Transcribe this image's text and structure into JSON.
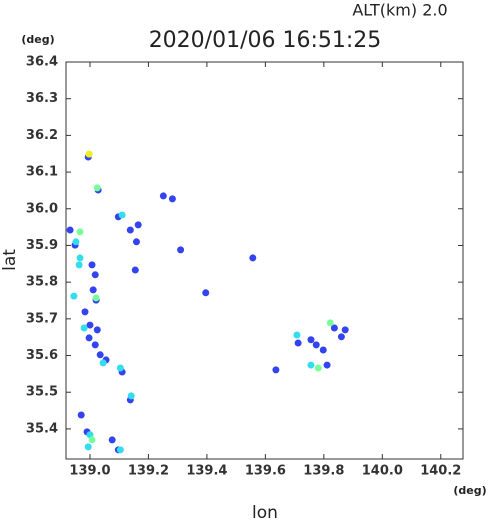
{
  "chart_data": {
    "type": "scatter",
    "title": "2020/01/06 16:51:25",
    "subtitle": "ALT(km) 2.0",
    "x_label": "lon",
    "y_label": "lat",
    "x_unit": "(deg)",
    "y_unit": "(deg)",
    "xlim": [
      138.918,
      140.276
    ],
    "ylim": [
      35.318,
      36.4
    ],
    "xticks": [
      {
        "value": 139,
        "label": "139.0"
      },
      139.2,
      139.4,
      139.6,
      139.8,
      {
        "value": 140,
        "label": "140.0"
      },
      140.2
    ],
    "yticks": [
      35.4,
      35.5,
      35.6,
      35.7,
      35.8,
      35.9,
      {
        "value": 36,
        "label": "36.0"
      },
      36.1,
      36.2,
      36.3,
      36.4
    ],
    "x": [
      138.994,
      139.028,
      139.097,
      139.138,
      139.165,
      139.251,
      139.282,
      138.932,
      138.949,
      139.007,
      139.018,
      139.011,
      139.021,
      138.983,
      139.0,
      139.025,
      138.997,
      139.018,
      139.035,
      139.055,
      139.11,
      138.97,
      138.99,
      139.076,
      139.097,
      139.138,
      139.557,
      139.712,
      139.756,
      139.774,
      139.798,
      139.811,
      139.836,
      139.873,
      139.86,
      139.396,
      139.31,
      139.159,
      139.155,
      139.636,
      138.952,
      138.966,
      138.945,
      138.98,
      139.045,
      139.104,
      139.141,
      139.0,
      139.756,
      139.708,
      138.994,
      139.104,
      139.11,
      138.963,
      139.025,
      139.021,
      139.781,
      139.822,
      139.007,
      138.966,
      138.997
    ],
    "y": [
      36.141,
      36.051,
      35.978,
      35.942,
      35.956,
      36.035,
      36.027,
      35.942,
      35.901,
      35.847,
      35.82,
      35.779,
      35.751,
      35.719,
      35.683,
      35.67,
      35.648,
      35.629,
      35.602,
      35.588,
      35.555,
      35.438,
      35.392,
      35.37,
      35.343,
      35.479,
      35.866,
      35.634,
      35.643,
      35.629,
      35.615,
      35.574,
      35.675,
      35.67,
      35.651,
      35.771,
      35.888,
      35.91,
      35.833,
      35.561,
      35.91,
      35.866,
      35.762,
      35.675,
      35.58,
      35.566,
      35.49,
      35.384,
      35.574,
      35.656,
      35.351,
      35.343,
      35.983,
      35.847,
      36.057,
      35.757,
      35.566,
      35.689,
      35.37,
      35.937,
      36.149
    ],
    "colors": [
      "#3344ee",
      "#3344ee",
      "#3344ee",
      "#3344ee",
      "#3344ee",
      "#3344ee",
      "#3344ee",
      "#3344ee",
      "#3344ee",
      "#3344ee",
      "#3344ee",
      "#3344ee",
      "#3344ee",
      "#3344ee",
      "#3344ee",
      "#3344ee",
      "#3344ee",
      "#3344ee",
      "#3344ee",
      "#3344ee",
      "#3344ee",
      "#3344ee",
      "#3344ee",
      "#3344ee",
      "#3344ee",
      "#3344ee",
      "#3344ee",
      "#3344ee",
      "#3344ee",
      "#3344ee",
      "#3344ee",
      "#3344ee",
      "#3344ee",
      "#3344ee",
      "#3344ee",
      "#3344ee",
      "#3344ee",
      "#3344ee",
      "#3344ee",
      "#3344ee",
      "#33ddee",
      "#33ddee",
      "#33ddee",
      "#33ddee",
      "#33ddee",
      "#33ddee",
      "#33ddee",
      "#33ddee",
      "#33ddee",
      "#33ddee",
      "#33ddee",
      "#33ddee",
      "#33ddee",
      "#33ddee",
      "#77ff99",
      "#77ff99",
      "#77ff99",
      "#77ff99",
      "#77ff99",
      "#77ff99",
      "#eeee22"
    ]
  }
}
